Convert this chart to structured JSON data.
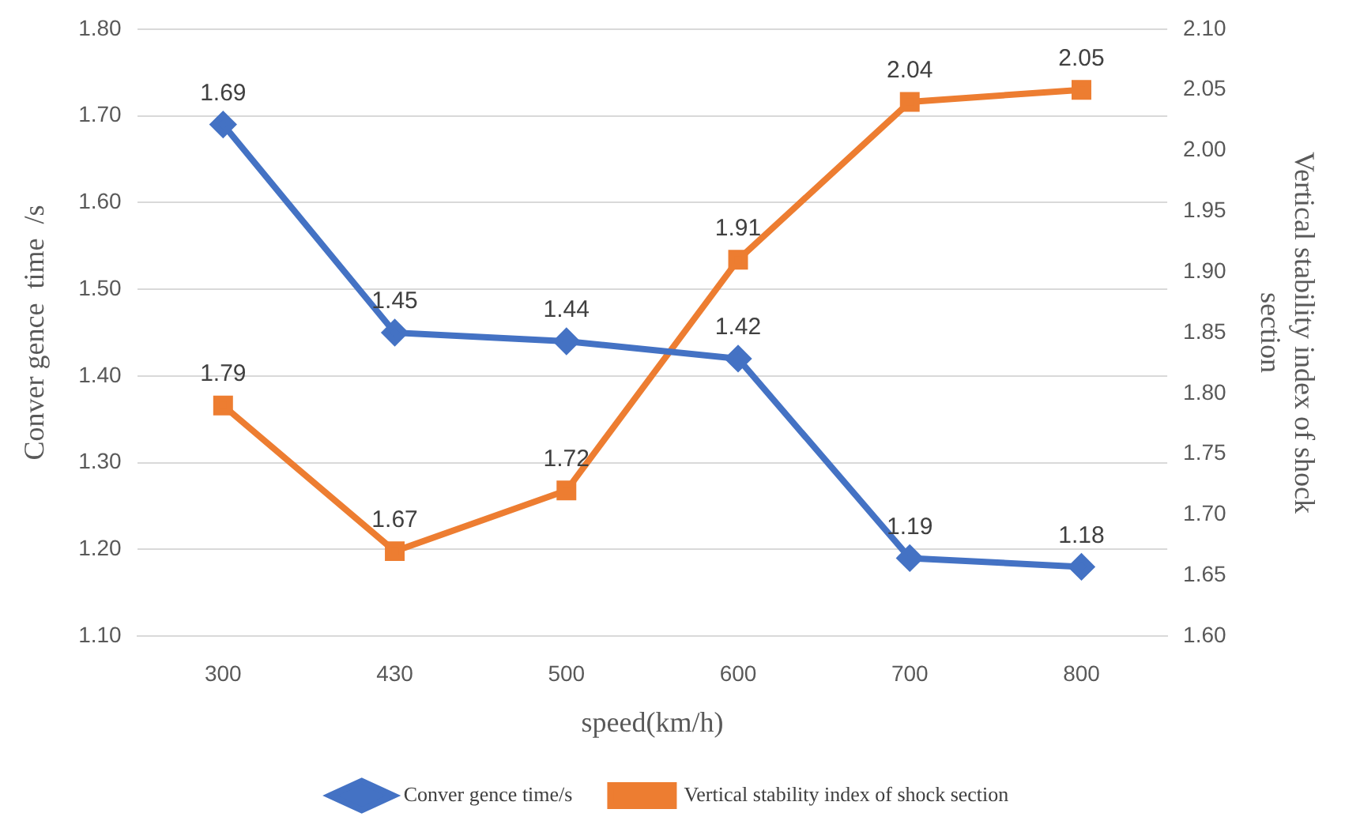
{
  "chart_data": {
    "type": "line",
    "xlabel": "speed(km/h)",
    "ylabel": "Conver gence  time  /s",
    "y2label": "Vertical stability index of shock section",
    "categories": [
      "300",
      "430",
      "500",
      "600",
      "700",
      "800"
    ],
    "series": [
      {
        "name": "Conver gence time/s",
        "color": "#4472c4",
        "marker": "diamond",
        "values": [
          1.69,
          1.45,
          1.44,
          1.42,
          1.19,
          1.18
        ]
      },
      {
        "name": "Vertical stability index of shock section",
        "color": "#ed7d31",
        "marker": "square",
        "axis": "y2",
        "values": [
          1.79,
          1.67,
          1.72,
          1.91,
          2.04,
          2.05
        ]
      }
    ],
    "ylim": [
      1.1,
      1.8
    ],
    "yticks": [
      {
        "value": 1.1,
        "label": "1.10"
      },
      {
        "value": 1.2,
        "label": "1.20"
      },
      {
        "value": 1.3,
        "label": "1.30"
      },
      {
        "value": 1.4,
        "label": "1.40"
      },
      {
        "value": 1.5,
        "label": "1.50"
      },
      {
        "value": 1.6,
        "label": "1.60"
      },
      {
        "value": 1.7,
        "label": "1.70"
      },
      {
        "value": 1.8,
        "label": "1.80"
      }
    ],
    "y2lim": [
      1.6,
      2.1
    ],
    "y2ticks": [
      {
        "value": 1.6,
        "label": "1.60"
      },
      1.65,
      {
        "value": 1.7,
        "label": "1.70"
      },
      1.75,
      {
        "value": 1.8,
        "label": "1.80"
      },
      1.85,
      {
        "value": 1.9,
        "label": "1.90"
      },
      1.95,
      {
        "value": 2.0,
        "label": "2.00"
      },
      2.05,
      {
        "value": 2.1,
        "label": "2.10"
      }
    ],
    "grid": "y",
    "legend": "bottom",
    "data_labels": true
  }
}
